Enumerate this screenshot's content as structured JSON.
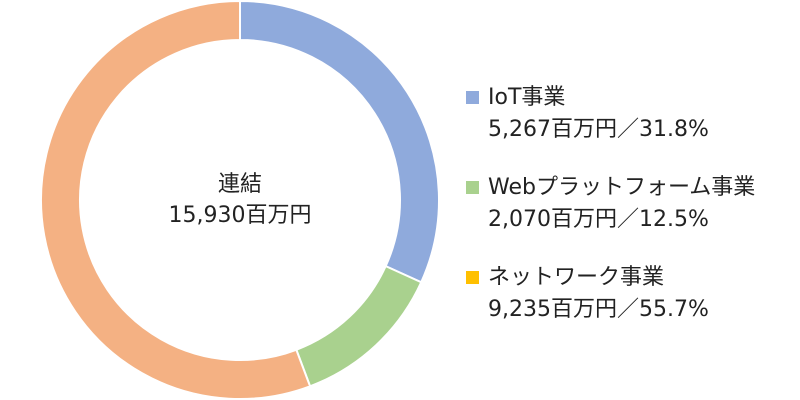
{
  "chart_data": {
    "type": "pie",
    "center": {
      "title": "連結",
      "total": "15,930百万円"
    },
    "slices": [
      {
        "name": "IoT事業",
        "value": 5267,
        "percent": 31.8,
        "label": "5,267百万円／31.8%",
        "color": "#8faadc",
        "legend_color": "#8faadc"
      },
      {
        "name": "Webプラットフォーム事業",
        "value": 2070,
        "percent": 12.5,
        "label": "2,070百万円／12.5%",
        "color": "#a9d18e",
        "legend_color": "#a9d18e"
      },
      {
        "name": "ネットワーク事業",
        "value": 9235,
        "percent": 55.7,
        "label": "9,235百万円／55.7%",
        "color": "#f4b183",
        "legend_color": "#ffc000"
      }
    ],
    "legend_position": "right"
  }
}
